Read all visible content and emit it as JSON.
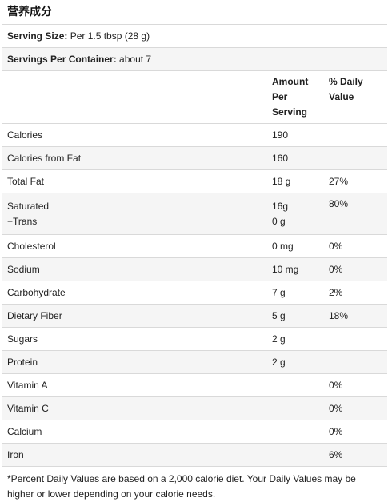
{
  "title": "营养成分",
  "serving_size": {
    "label": "Serving Size:",
    "value": " Per 1.5 tbsp (28 g)"
  },
  "servings_per_container": {
    "label": "Servings Per Container:",
    "value": " about 7"
  },
  "headers": {
    "amount": "Amount Per Serving",
    "daily_value": "% Daily Value"
  },
  "rows": [
    {
      "name": "Calories",
      "amount": "190",
      "dv": ""
    },
    {
      "name": "Calories from Fat",
      "amount": "160",
      "dv": ""
    },
    {
      "name": "Total Fat",
      "amount": "18 g",
      "dv": "27%"
    },
    {
      "name": "Saturated",
      "name2": "+Trans",
      "amount": "16g",
      "amount2": "0 g",
      "dv": "80%"
    },
    {
      "name": "Cholesterol",
      "amount": "0 mg",
      "dv": "0%"
    },
    {
      "name": "Sodium",
      "amount": "10 mg",
      "dv": "0%"
    },
    {
      "name": "Carbohydrate",
      "amount": "7 g",
      "dv": "2%"
    },
    {
      "name": "Dietary Fiber",
      "amount": "5 g",
      "dv": "18%"
    },
    {
      "name": "Sugars",
      "amount": "2 g",
      "dv": ""
    },
    {
      "name": "Protein",
      "amount": "2 g",
      "dv": ""
    },
    {
      "name": "Vitamin A",
      "amount": "",
      "dv": "0%"
    },
    {
      "name": "Vitamin C",
      "amount": "",
      "dv": "0%"
    },
    {
      "name": "Calcium",
      "amount": "",
      "dv": "0%"
    },
    {
      "name": "Iron",
      "amount": "",
      "dv": "6%"
    }
  ],
  "footnote": "*Percent Daily Values are based on a 2,000 calorie diet. Your Daily Values may be higher or lower depending on your calorie needs."
}
